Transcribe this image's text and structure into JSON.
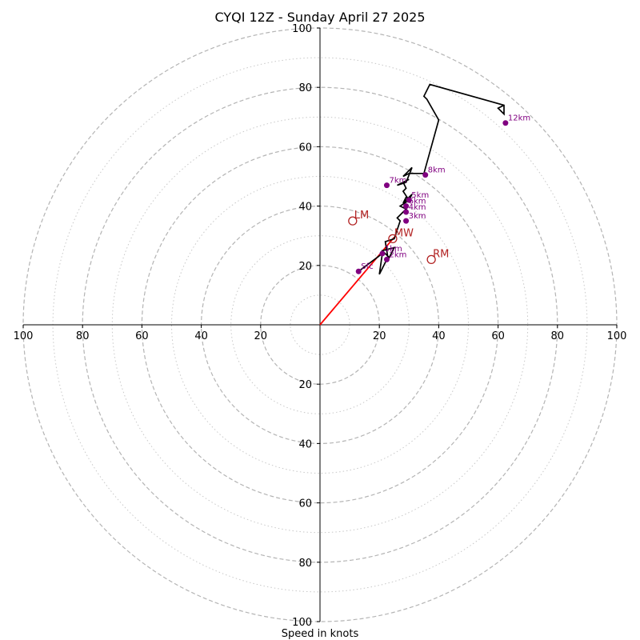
{
  "chart_data": {
    "type": "scatter",
    "subtype": "hodograph",
    "title": "CYQI 12Z - Sunday April 27 2025",
    "xlabel": "Speed in knots",
    "ylabel": "",
    "xlim": [
      -100,
      100
    ],
    "ylim": [
      -100,
      100
    ],
    "rings_dashed": [
      20,
      40,
      60,
      80,
      100
    ],
    "rings_dotted": [
      10,
      30,
      50,
      70,
      90
    ],
    "x_tick_labels": [
      "100",
      "80",
      "60",
      "40",
      "20",
      "20",
      "40",
      "60",
      "80",
      "100"
    ],
    "y_tick_labels": [
      "100",
      "80",
      "60",
      "40",
      "20",
      "20",
      "40",
      "60",
      "80",
      "100"
    ],
    "grid": true,
    "trace_color": "#000000",
    "height_marker_color": "#800080",
    "motion_color": "#b22222",
    "shear_vector_color": "#ff0000",
    "wind_trace": {
      "u": [
        13,
        21,
        20,
        23,
        21,
        25,
        23,
        22,
        25,
        27,
        26,
        29,
        27,
        30,
        29,
        28,
        31,
        30,
        28,
        29,
        28,
        30,
        26,
        29,
        31,
        28,
        30,
        35,
        40,
        36,
        35,
        37,
        62,
        62,
        60,
        62
      ],
      "v": [
        18,
        24,
        17,
        23,
        25,
        26,
        22,
        28,
        29,
        35,
        36,
        39,
        40,
        42,
        43,
        41,
        44,
        42,
        45,
        46,
        48,
        49,
        47,
        48,
        53,
        50,
        51,
        51,
        69,
        76,
        77,
        81,
        74,
        71,
        73,
        74
      ]
    },
    "height_markers": [
      {
        "label": "Sfc",
        "u": 13,
        "v": 18
      },
      {
        "label": "1km",
        "u": 21,
        "v": 24
      },
      {
        "label": "2km",
        "u": 22.5,
        "v": 22
      },
      {
        "label": "3km",
        "u": 29,
        "v": 35
      },
      {
        "label": "4km",
        "u": 29,
        "v": 38
      },
      {
        "label": "5km",
        "u": 30,
        "v": 42
      },
      {
        "label": "6km",
        "u": 29,
        "v": 40
      },
      {
        "label": "7km",
        "u": 22.5,
        "v": 47
      },
      {
        "label": "8km",
        "u": 35.5,
        "v": 50.5
      },
      {
        "label": "12km",
        "u": 62.5,
        "v": 68
      }
    ],
    "storm_motion": [
      {
        "label": "LM",
        "u": 11,
        "v": 35
      },
      {
        "label": "MW",
        "u": 24.5,
        "v": 29
      },
      {
        "label": "RM",
        "u": 37.5,
        "v": 22
      }
    ],
    "shear_vector": {
      "from": [
        0,
        0
      ],
      "to": [
        25,
        29.5
      ]
    }
  }
}
